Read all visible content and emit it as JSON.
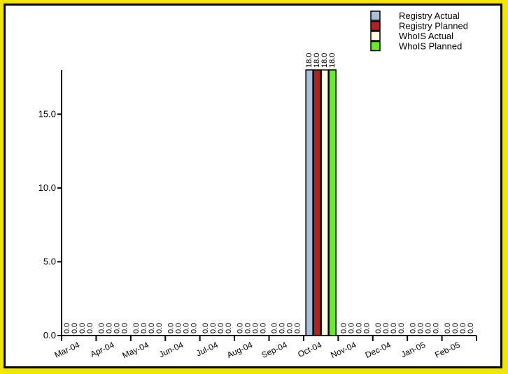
{
  "chart_data": {
    "type": "bar",
    "title": "",
    "xlabel": "",
    "ylabel": "",
    "categories": [
      "Mar-04",
      "Apr-04",
      "May-04",
      "Jun-04",
      "Jul-04",
      "Aug-04",
      "Sep-04",
      "Oct-04",
      "Nov-04",
      "Dec-04",
      "Jan-05",
      "Feb-05"
    ],
    "series": [
      {
        "name": "Registry Actual",
        "color": "#a8c0dc",
        "values": [
          0,
          0,
          0,
          0,
          0,
          0,
          0,
          18,
          0,
          0,
          0,
          0
        ]
      },
      {
        "name": "Registry Planned",
        "color": "#b22222",
        "values": [
          0,
          0,
          0,
          0,
          0,
          0,
          0,
          18,
          0,
          0,
          0,
          0
        ]
      },
      {
        "name": "WhoIS Actual",
        "color": "#fffbe0",
        "values": [
          0,
          0,
          0,
          0,
          0,
          0,
          0,
          18,
          0,
          0,
          0,
          0
        ]
      },
      {
        "name": "WhoIS Planned",
        "color": "#66ee22",
        "values": [
          0,
          0,
          0,
          0,
          0,
          0,
          0,
          18,
          0,
          0,
          0,
          0
        ]
      }
    ],
    "data_labels": [
      "0.0",
      "0.0",
      "0.0",
      "0.0",
      "0.0",
      "0.0",
      "0.0",
      "18.0",
      "0.0",
      "0.0",
      "0.0",
      "0.0"
    ],
    "yticks": [
      "0.0",
      "5.0",
      "10.0",
      "15.0"
    ],
    "ylim": [
      0,
      18
    ],
    "legend_position": "top-right",
    "grid": false
  }
}
